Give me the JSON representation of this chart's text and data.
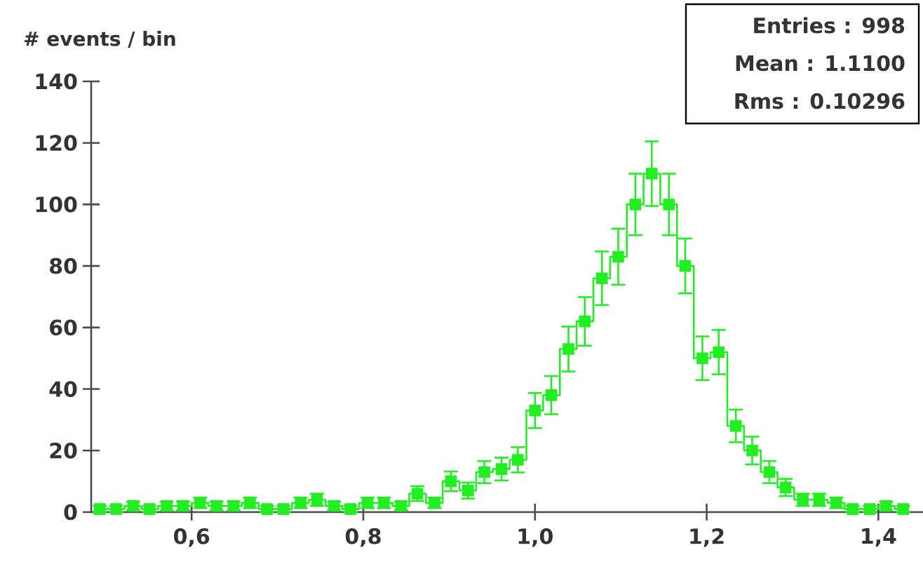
{
  "chart_data": {
    "type": "step",
    "ylabel": "# events / bin",
    "annotations": [
      "Entries :   998",
      "Mean : 1.1100",
      "Rms : 0.10296"
    ],
    "x": [
      0.493,
      0.512,
      0.532,
      0.551,
      0.571,
      0.59,
      0.61,
      0.629,
      0.649,
      0.668,
      0.688,
      0.707,
      0.727,
      0.746,
      0.766,
      0.785,
      0.805,
      0.824,
      0.844,
      0.863,
      0.883,
      0.902,
      0.922,
      0.941,
      0.961,
      0.98,
      1.0,
      1.019,
      1.039,
      1.058,
      1.078,
      1.097,
      1.117,
      1.136,
      1.156,
      1.175,
      1.195,
      1.214,
      1.234,
      1.253,
      1.273,
      1.292,
      1.312,
      1.331,
      1.351,
      1.37,
      1.39,
      1.409,
      1.429
    ],
    "values": [
      1,
      1,
      2,
      1,
      2,
      2,
      3,
      2,
      2,
      3,
      1,
      1,
      3,
      4,
      2,
      1,
      3,
      3,
      2,
      6,
      3,
      10,
      7,
      13,
      14,
      17,
      33,
      38,
      53,
      62,
      76,
      83,
      100,
      110,
      100,
      80,
      50,
      52,
      28,
      20,
      13,
      8,
      4,
      4,
      3,
      1,
      1,
      2,
      1
    ],
    "errors": [
      1,
      1,
      1.4,
      1,
      1.4,
      1.4,
      1.7,
      1.4,
      1.4,
      1.7,
      1,
      1,
      1.7,
      2,
      1.4,
      1,
      1.7,
      1.7,
      1.4,
      2.4,
      1.7,
      3.2,
      2.6,
      3.6,
      3.7,
      4.1,
      5.7,
      6.2,
      7.3,
      7.9,
      8.7,
      9.1,
      10,
      10.5,
      10,
      8.9,
      7.1,
      7.2,
      5.3,
      4.5,
      3.6,
      2.8,
      2,
      2,
      1.7,
      1,
      1,
      1.4,
      1
    ],
    "color": "#22ee22",
    "marker": "square",
    "xlim": [
      0.483,
      1.452
    ],
    "ylim": [
      0,
      140
    ],
    "xticks": [
      {
        "value": 0.6,
        "label": "0,6"
      },
      {
        "value": 0.8,
        "label": "0,8"
      },
      {
        "value": 1.0,
        "label": "1,0"
      },
      {
        "value": 1.2,
        "label": "1,2"
      },
      {
        "value": 1.4,
        "label": "1,4"
      }
    ],
    "yticks": [
      0,
      20,
      40,
      60,
      80,
      100,
      120,
      140
    ]
  }
}
